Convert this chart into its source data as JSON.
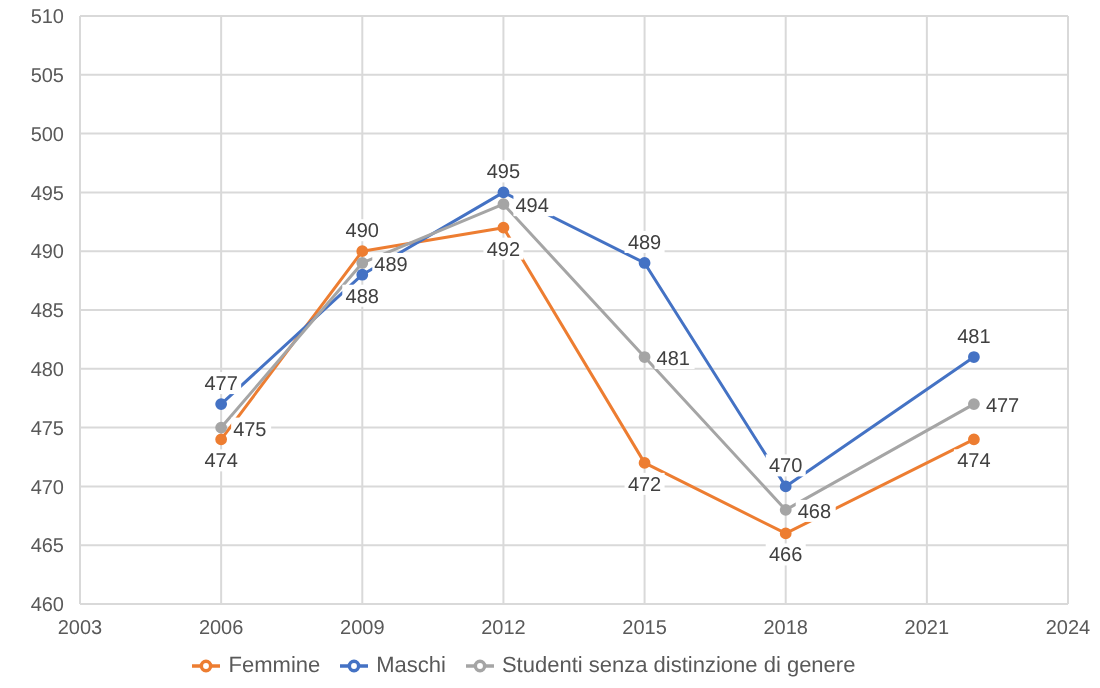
{
  "chart_data": {
    "type": "line",
    "x": [
      2006,
      2009,
      2012,
      2015,
      2018,
      2022
    ],
    "series": [
      {
        "name": "Femmine",
        "color": "#ed7d31",
        "values": [
          474,
          490,
          492,
          472,
          466,
          474
        ]
      },
      {
        "name": "Maschi",
        "color": "#4472c4",
        "values": [
          477,
          488,
          495,
          489,
          470,
          481
        ]
      },
      {
        "name": "Studenti senza distinzione di genere",
        "color": "#a5a5a5",
        "values": [
          475,
          489,
          494,
          481,
          468,
          477
        ]
      }
    ],
    "xlim": [
      2003,
      2024
    ],
    "xticks": [
      2003,
      2006,
      2009,
      2012,
      2015,
      2018,
      2021,
      2024
    ],
    "ylim": [
      460,
      510
    ],
    "yticks": [
      460,
      465,
      470,
      475,
      480,
      485,
      490,
      495,
      500,
      505,
      510
    ],
    "grid": true,
    "legend": "bottom",
    "marker": "circle",
    "line_style": "solid",
    "data_labels": true
  }
}
